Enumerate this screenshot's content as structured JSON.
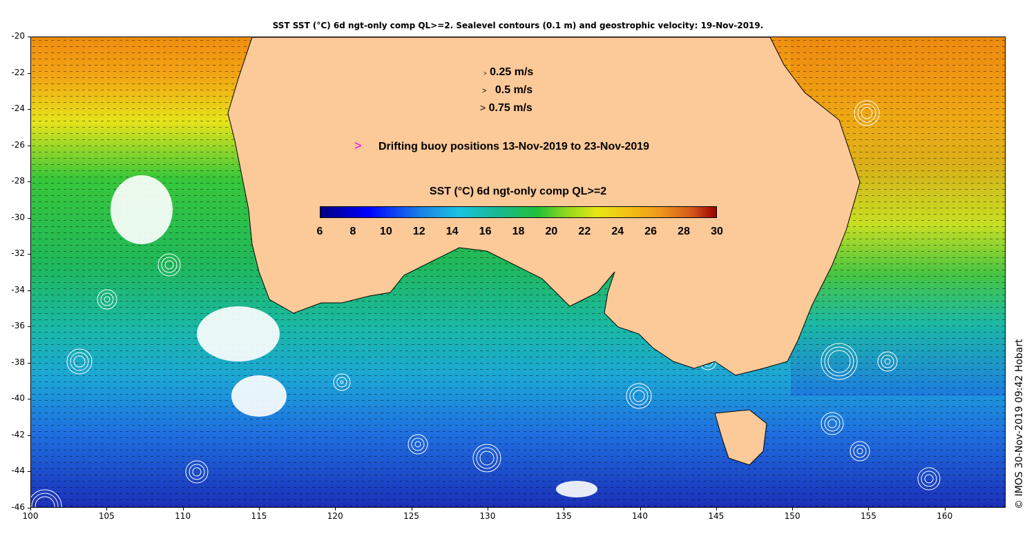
{
  "title": "SST SST (°C) 6d ngt-only comp QL>=2. Sealevel contours (0.1 m) and geostrophic velocity: 19-Nov-2019.",
  "axes": {
    "x_ticks": [
      "100",
      "105",
      "110",
      "115",
      "120",
      "125",
      "130",
      "135",
      "140",
      "145",
      "150",
      "155",
      "160"
    ],
    "y_ticks": [
      "-20",
      "-22",
      "-24",
      "-26",
      "-28",
      "-30",
      "-32",
      "-34",
      "-36",
      "-38",
      "-40",
      "-42",
      "-44",
      "-46"
    ],
    "lon_range": [
      100,
      164
    ],
    "lat_range": [
      -46,
      -20
    ]
  },
  "velocity_legend": [
    {
      "label": "0.25 m/s",
      "symbol": ">"
    },
    {
      "label": "0.5 m/s",
      "symbol": ">"
    },
    {
      "label": "0.75 m/s",
      "symbol": ">"
    }
  ],
  "buoy_legend": {
    "symbol": ">",
    "label": "Drifting buoy positions 13-Nov-2019 to 23-Nov-2019",
    "color": "#ff00ff"
  },
  "colorbar": {
    "title": "SST (°C) 6d ngt-only comp QL>=2",
    "ticks": [
      "6",
      "8",
      "10",
      "12",
      "14",
      "16",
      "18",
      "20",
      "22",
      "24",
      "26",
      "28",
      "30"
    ],
    "range": [
      6,
      30
    ]
  },
  "credit": "© IMOS 30-Nov-2019 09:42 Hobart",
  "colors": {
    "land": "#fcc999",
    "deep_blue": "#1a2db8",
    "blue": "#1f6fe0",
    "cyan": "#19c4c4",
    "green": "#22c13a",
    "yellow": "#e8e615",
    "orange": "#f29c12",
    "coastline": "#000000",
    "contours": "#ffffff"
  },
  "chart_data": {
    "type": "heatmap",
    "title": "SST SST (°C) 6d ngt-only comp QL>=2. Sealevel contours (0.1 m) and geostrophic velocity: 19-Nov-2019.",
    "xlabel": "",
    "ylabel": "",
    "xlim": [
      100,
      164
    ],
    "ylim": [
      -46,
      -20
    ],
    "colorbar_range": [
      6,
      30
    ]
  }
}
